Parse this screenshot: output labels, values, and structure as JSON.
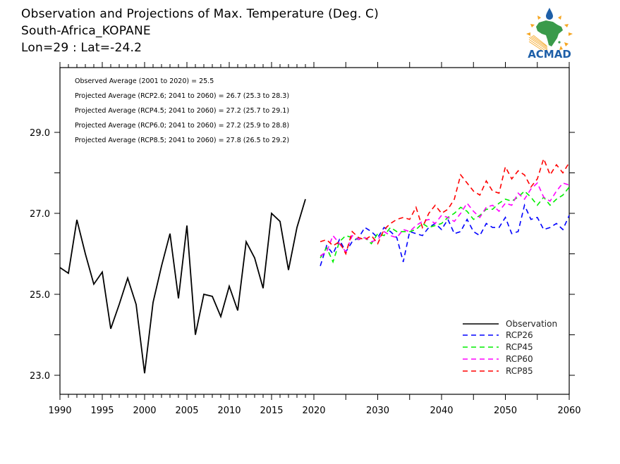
{
  "header": {
    "title": "Observation and Projections of Max. Temperature (Deg. C)",
    "location": "South-Africa_KOPANE",
    "coords": "Lon=29 : Lat=-24.2"
  },
  "logo": {
    "text": "ACMAD",
    "icon": "acmad-africa-logo-icon"
  },
  "colors": {
    "observation": "#000000",
    "rcp26": "#0000ff",
    "rcp45": "#00ee00",
    "rcp60": "#ff00ff",
    "rcp85": "#ff0000",
    "logo_green": "#3a9a4a",
    "logo_blue": "#1e5fa8",
    "logo_orange": "#f5a623"
  },
  "chart_data": {
    "type": "line",
    "title": "Observation and Projections of Max. Temperature (Deg. C)",
    "subtitle": "South-Africa_KOPANE  Lon=29 : Lat=-24.2",
    "xlabel": "",
    "ylabel": "",
    "xlim": [
      1990,
      2060
    ],
    "ylim": [
      22.5,
      30.5
    ],
    "grid": false,
    "x_ticks_major": [
      "1990",
      "1995",
      "2000",
      "2005",
      "2010",
      "2015",
      "2020",
      "2030",
      "2040",
      "2050",
      "2060"
    ],
    "y_ticks_labeled": [
      "23.0",
      "25.0",
      "27.0",
      "29.0"
    ],
    "y_ticks_all": [
      23,
      24,
      25,
      26,
      27,
      28,
      29
    ],
    "legend_position": "bottom-right",
    "annotations": [
      "Observed Average (2001 to 2020) = 25.5",
      "Projected Average (RCP2.6; 2041 to 2060) = 26.7 (25.3 to 28.3)",
      "Projected Average (RCP4.5; 2041 to 2060) = 27.2 (25.7 to 29.1)",
      "Projected Average (RCP6.0; 2041 to 2060) = 27.2 (25.9 to 28.8)",
      "Projected Average (RCP8.5; 2041 to 2060) = 27.8 (26.5 to 29.2)"
    ],
    "series": [
      {
        "name": "Observation",
        "style": "solid",
        "x_start": 1990,
        "values": [
          25.66,
          25.52,
          26.84,
          26.0,
          25.25,
          25.55,
          24.15,
          24.75,
          25.4,
          24.75,
          23.05,
          24.8,
          25.7,
          26.5,
          24.9,
          26.7,
          24.0,
          25.0,
          24.95,
          24.45,
          25.2,
          24.6,
          26.3,
          25.9,
          25.15,
          27.0,
          26.8,
          25.6,
          26.65,
          27.35
        ]
      },
      {
        "name": "RCP26",
        "style": "dashed",
        "x_start": 2021,
        "values": [
          25.7,
          26.2,
          26.0,
          26.35,
          26.05,
          26.3,
          26.4,
          26.65,
          26.55,
          26.4,
          26.65,
          26.55,
          26.4,
          25.8,
          26.55,
          26.5,
          26.45,
          26.65,
          26.75,
          26.6,
          26.85,
          26.5,
          26.55,
          26.85,
          26.55,
          26.45,
          26.75,
          26.65,
          26.65,
          26.9,
          26.5,
          26.55,
          27.2,
          26.85,
          26.9,
          26.6,
          26.65,
          26.75,
          26.6,
          26.95
        ]
      },
      {
        "name": "RCP45",
        "style": "dashed",
        "x_start": 2021,
        "values": [
          25.9,
          26.15,
          25.8,
          26.3,
          26.45,
          26.4,
          26.35,
          26.4,
          26.25,
          26.5,
          26.45,
          26.65,
          26.55,
          26.55,
          26.55,
          26.6,
          26.75,
          26.65,
          26.7,
          26.75,
          26.9,
          27.0,
          27.15,
          27.05,
          26.85,
          26.95,
          27.1,
          27.1,
          27.25,
          27.35,
          27.3,
          27.4,
          27.55,
          27.4,
          27.2,
          27.4,
          27.2,
          27.35,
          27.45,
          27.65
        ]
      },
      {
        "name": "RCP60",
        "style": "dashed",
        "x_start": 2021,
        "values": [
          25.95,
          26.05,
          26.45,
          26.25,
          26.05,
          26.45,
          26.35,
          26.4,
          26.3,
          26.35,
          26.55,
          26.45,
          26.4,
          26.6,
          26.55,
          26.7,
          26.8,
          26.85,
          26.75,
          26.95,
          26.9,
          26.8,
          27.0,
          27.25,
          27.05,
          26.9,
          27.15,
          27.2,
          27.05,
          27.25,
          27.2,
          27.5,
          27.35,
          27.6,
          27.75,
          27.4,
          27.3,
          27.55,
          27.75,
          27.7
        ]
      },
      {
        "name": "RCP85",
        "style": "dashed",
        "x_start": 2021,
        "values": [
          26.3,
          26.35,
          26.2,
          26.3,
          26.0,
          26.55,
          26.4,
          26.35,
          26.45,
          26.25,
          26.6,
          26.75,
          26.85,
          26.9,
          26.85,
          27.15,
          26.65,
          27.0,
          27.2,
          27.0,
          27.1,
          27.35,
          27.95,
          27.75,
          27.55,
          27.45,
          27.8,
          27.55,
          27.5,
          28.15,
          27.85,
          28.05,
          27.95,
          27.65,
          27.85,
          28.35,
          27.95,
          28.2,
          28.0,
          28.25
        ]
      }
    ]
  }
}
